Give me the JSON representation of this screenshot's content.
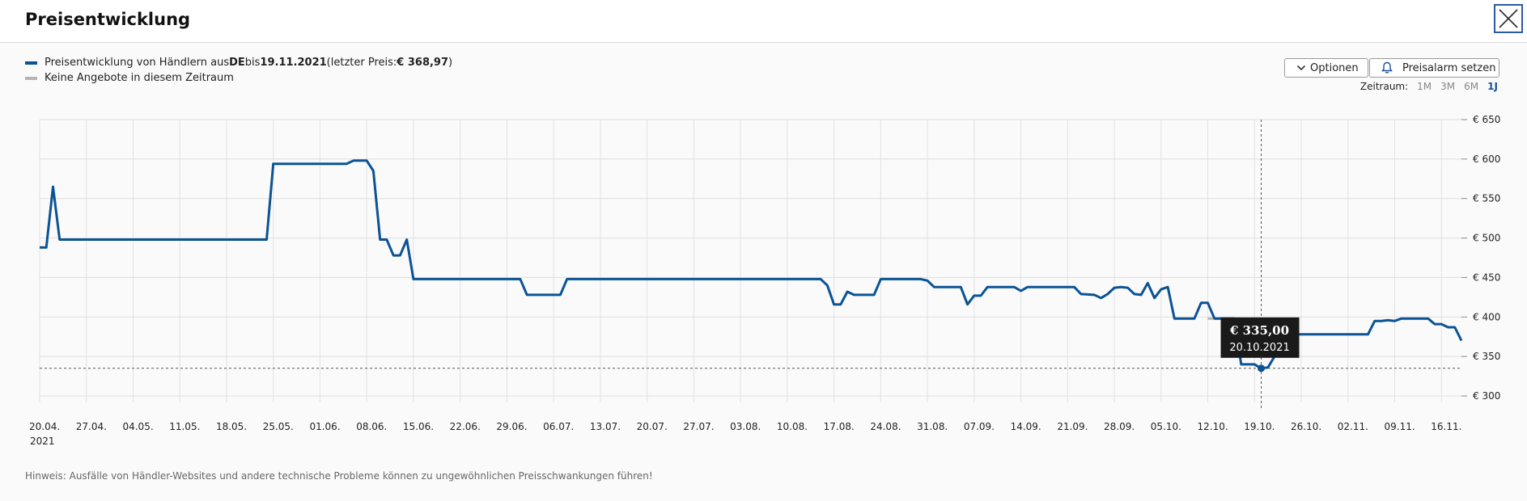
{
  "header": {
    "title": "Preisentwicklung"
  },
  "legend": {
    "line1": {
      "prefix": "Preisentwicklung von Händlern aus ",
      "country": "DE",
      "mid": " bis ",
      "date": "19.11.2021",
      "pre_price": " (letzter Preis: ",
      "price": "€ 368,97",
      "suffix": ")"
    },
    "line2": "Keine Angebote in diesem Zeitraum"
  },
  "buttons": {
    "options": "Optionen",
    "price_alarm": "Preisalarm setzen"
  },
  "zeitraum": {
    "label": "Zeitraum:",
    "options": [
      "1M",
      "3M",
      "6M",
      "1J"
    ],
    "active": "1J"
  },
  "hint": "Hinweis: Ausfälle von Händler-Websites und andere technische Probleme können zu ungewöhnlichen Preisschwankungen führen!",
  "tooltip": {
    "price": "€ 335,00",
    "date": "20.10.2021"
  },
  "colors": {
    "series": "#0b5394",
    "gap": "#b5b5b5",
    "active": "#1b4f9c"
  },
  "chart_data": {
    "type": "line",
    "xlabel": "",
    "ylabel": "",
    "ylim": [
      300,
      650
    ],
    "yticks": [
      300,
      350,
      400,
      450,
      500,
      550,
      600,
      650
    ],
    "ytick_labels": [
      "€ 300",
      "€ 350",
      "€ 400",
      "€ 450",
      "€ 500",
      "€ 550",
      "€ 600",
      "€ 650"
    ],
    "x_start": "2021-04-20",
    "x_end": "2021-11-19",
    "xtick_labels": [
      "20.04.",
      "27.04.",
      "04.05.",
      "11.05.",
      "18.05.",
      "25.05.",
      "01.06.",
      "08.06.",
      "15.06.",
      "22.06.",
      "29.06.",
      "06.07.",
      "13.07.",
      "20.07.",
      "27.07.",
      "03.08.",
      "10.08.",
      "17.08.",
      "24.08.",
      "31.08.",
      "07.09.",
      "14.09.",
      "21.09.",
      "28.09.",
      "05.10.",
      "12.10.",
      "19.10.",
      "26.10.",
      "02.11.",
      "09.11.",
      "16.11."
    ],
    "xtick_year": "2021",
    "grid": true,
    "legend": "top-left",
    "crosshair": {
      "x": "2021-10-20",
      "y": 335
    },
    "gap_segments": [
      {
        "from": "2021-10-12",
        "to": "2021-10-16",
        "y": 398
      }
    ],
    "series": [
      {
        "name": "Preisentwicklung von Händlern aus DE",
        "points": [
          [
            "2021-04-20",
            488
          ],
          [
            "2021-04-21",
            488
          ],
          [
            "2021-04-22",
            565
          ],
          [
            "2021-04-23",
            498
          ],
          [
            "2021-05-24",
            498
          ],
          [
            "2021-05-25",
            594
          ],
          [
            "2021-06-05",
            594
          ],
          [
            "2021-06-06",
            598
          ],
          [
            "2021-06-08",
            598
          ],
          [
            "2021-06-09",
            585
          ],
          [
            "2021-06-10",
            498
          ],
          [
            "2021-06-11",
            498
          ],
          [
            "2021-06-12",
            478
          ],
          [
            "2021-06-13",
            478
          ],
          [
            "2021-06-14",
            498
          ],
          [
            "2021-06-15",
            448
          ],
          [
            "2021-07-01",
            448
          ],
          [
            "2021-07-02",
            428
          ],
          [
            "2021-07-07",
            428
          ],
          [
            "2021-07-08",
            448
          ],
          [
            "2021-08-15",
            448
          ],
          [
            "2021-08-16",
            440
          ],
          [
            "2021-08-17",
            416
          ],
          [
            "2021-08-18",
            416
          ],
          [
            "2021-08-19",
            432
          ],
          [
            "2021-08-20",
            428
          ],
          [
            "2021-08-23",
            428
          ],
          [
            "2021-08-24",
            448
          ],
          [
            "2021-08-30",
            448
          ],
          [
            "2021-08-31",
            446
          ],
          [
            "2021-09-01",
            438
          ],
          [
            "2021-09-05",
            438
          ],
          [
            "2021-09-06",
            416
          ],
          [
            "2021-09-07",
            427
          ],
          [
            "2021-09-08",
            427
          ],
          [
            "2021-09-09",
            438
          ],
          [
            "2021-09-13",
            438
          ],
          [
            "2021-09-14",
            433
          ],
          [
            "2021-09-15",
            438
          ],
          [
            "2021-09-22",
            438
          ],
          [
            "2021-09-23",
            429
          ],
          [
            "2021-09-25",
            428
          ],
          [
            "2021-09-26",
            424
          ],
          [
            "2021-09-27",
            429
          ],
          [
            "2021-09-28",
            437
          ],
          [
            "2021-09-29",
            438
          ],
          [
            "2021-09-30",
            437
          ],
          [
            "2021-10-01",
            429
          ],
          [
            "2021-10-02",
            428
          ],
          [
            "2021-10-03",
            443
          ],
          [
            "2021-10-04",
            424
          ],
          [
            "2021-10-05",
            435
          ],
          [
            "2021-10-06",
            438
          ],
          [
            "2021-10-07",
            398
          ],
          [
            "2021-10-10",
            398
          ],
          [
            "2021-10-11",
            418
          ],
          [
            "2021-10-12",
            418
          ],
          [
            "2021-10-13",
            398
          ],
          [
            "2021-10-16",
            398
          ],
          [
            "2021-10-17",
            340
          ],
          [
            "2021-10-19",
            340
          ],
          [
            "2021-10-20",
            335
          ],
          [
            "2021-10-21",
            336
          ],
          [
            "2021-10-22",
            350
          ],
          [
            "2021-10-23",
            378
          ],
          [
            "2021-11-05",
            378
          ],
          [
            "2021-11-06",
            395
          ],
          [
            "2021-11-07",
            395
          ],
          [
            "2021-11-08",
            396
          ],
          [
            "2021-11-09",
            395
          ],
          [
            "2021-11-10",
            398
          ],
          [
            "2021-11-14",
            398
          ],
          [
            "2021-11-15",
            391
          ],
          [
            "2021-11-16",
            391
          ],
          [
            "2021-11-17",
            387
          ],
          [
            "2021-11-18",
            387
          ],
          [
            "2021-11-19",
            370
          ]
        ]
      }
    ]
  }
}
